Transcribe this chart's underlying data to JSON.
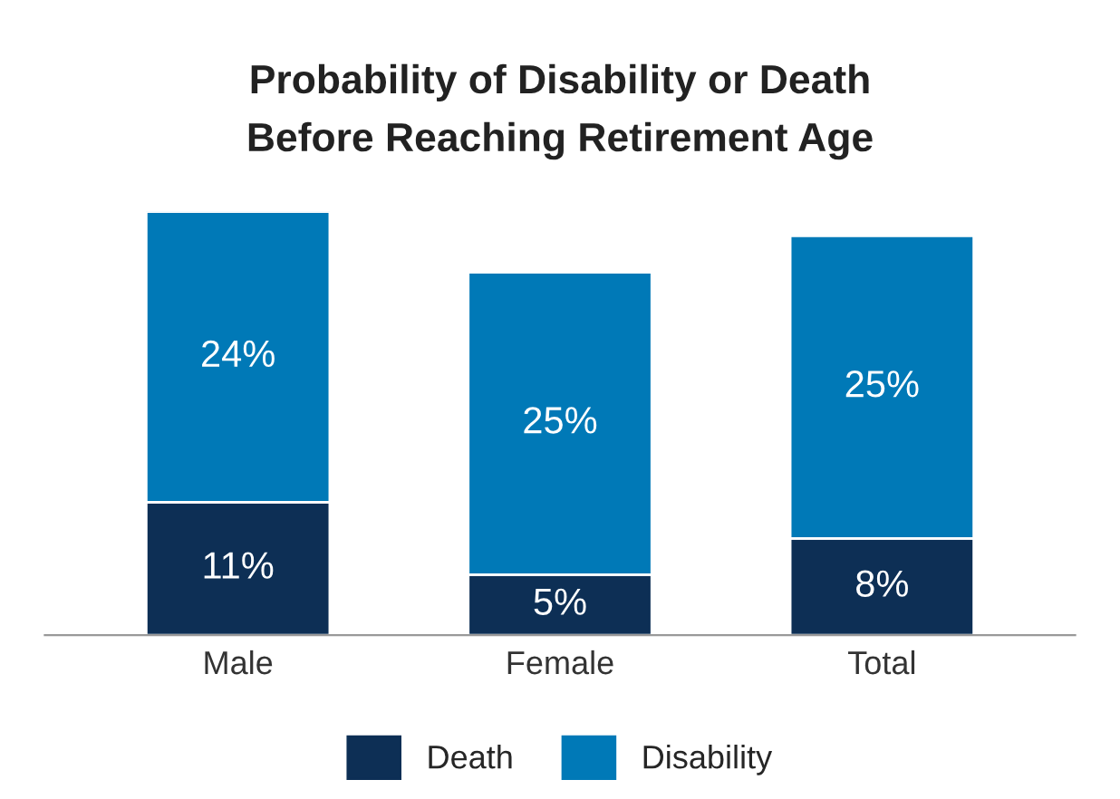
{
  "chart_data": {
    "type": "bar",
    "title": "Probability of Disability or Death\nBefore Reaching Retirement Age",
    "categories": [
      "Male",
      "Female",
      "Total"
    ],
    "stacked": true,
    "legend": "bottom",
    "grid": false,
    "tick_labels": "x",
    "series": [
      {
        "name": "Death",
        "color": "#0d2f55",
        "values": [
          11,
          5,
          8
        ],
        "value_labels": [
          "11%",
          "5%",
          "8%"
        ]
      },
      {
        "name": "Disability",
        "color": "#0079b7",
        "values": [
          24,
          25,
          25
        ],
        "value_labels": [
          "24%",
          "25%",
          "25%"
        ]
      }
    ]
  }
}
